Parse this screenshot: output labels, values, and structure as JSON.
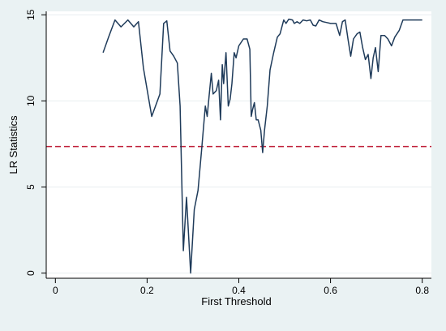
{
  "chart_data": {
    "type": "line",
    "xlabel": "First Threshold",
    "ylabel": "LR Statistics",
    "xlim": [
      -0.02,
      0.82
    ],
    "ylim": [
      -0.3,
      15.2
    ],
    "x_ticks": [
      0,
      0.2,
      0.4,
      0.6,
      0.8
    ],
    "x_tick_labels": [
      "0",
      "0.2",
      "0.4",
      "0.6",
      "0.8"
    ],
    "y_ticks": [
      0,
      5,
      10,
      15
    ],
    "y_tick_labels": [
      "0",
      "5",
      "10",
      "15"
    ],
    "grid": "horizontal",
    "legend": "none",
    "reference_line": {
      "y": 7.35,
      "style": "dashed",
      "color": "#c0203a"
    },
    "series": [
      {
        "color": "#1f3b5a",
        "points": [
          [
            0.104,
            12.8
          ],
          [
            0.116,
            13.7
          ],
          [
            0.13,
            14.7
          ],
          [
            0.143,
            14.3
          ],
          [
            0.158,
            14.7
          ],
          [
            0.171,
            14.3
          ],
          [
            0.181,
            14.6
          ],
          [
            0.192,
            11.9
          ],
          [
            0.21,
            9.1
          ],
          [
            0.228,
            10.4
          ],
          [
            0.236,
            14.5
          ],
          [
            0.243,
            14.65
          ],
          [
            0.25,
            12.9
          ],
          [
            0.258,
            12.6
          ],
          [
            0.266,
            12.2
          ],
          [
            0.272,
            9.7
          ],
          [
            0.279,
            1.3
          ],
          [
            0.286,
            4.4
          ],
          [
            0.295,
            0.0
          ],
          [
            0.303,
            3.7
          ],
          [
            0.311,
            4.8
          ],
          [
            0.319,
            7.2
          ],
          [
            0.327,
            9.7
          ],
          [
            0.331,
            9.1
          ],
          [
            0.335,
            10.2
          ],
          [
            0.34,
            11.6
          ],
          [
            0.344,
            10.4
          ],
          [
            0.351,
            10.6
          ],
          [
            0.356,
            11.2
          ],
          [
            0.36,
            8.9
          ],
          [
            0.364,
            12.1
          ],
          [
            0.367,
            11.0
          ],
          [
            0.372,
            12.8
          ],
          [
            0.377,
            9.7
          ],
          [
            0.381,
            10.1
          ],
          [
            0.385,
            11.0
          ],
          [
            0.39,
            12.8
          ],
          [
            0.394,
            12.5
          ],
          [
            0.4,
            13.2
          ],
          [
            0.41,
            13.6
          ],
          [
            0.418,
            13.6
          ],
          [
            0.424,
            13.0
          ],
          [
            0.427,
            9.1
          ],
          [
            0.43,
            9.5
          ],
          [
            0.434,
            9.9
          ],
          [
            0.438,
            8.9
          ],
          [
            0.442,
            8.9
          ],
          [
            0.448,
            8.3
          ],
          [
            0.452,
            7.0
          ],
          [
            0.456,
            8.3
          ],
          [
            0.462,
            9.7
          ],
          [
            0.468,
            11.8
          ],
          [
            0.476,
            12.8
          ],
          [
            0.484,
            13.7
          ],
          [
            0.49,
            13.9
          ],
          [
            0.498,
            14.7
          ],
          [
            0.503,
            14.5
          ],
          [
            0.509,
            14.75
          ],
          [
            0.517,
            14.7
          ],
          [
            0.521,
            14.5
          ],
          [
            0.527,
            14.6
          ],
          [
            0.533,
            14.5
          ],
          [
            0.54,
            14.7
          ],
          [
            0.548,
            14.65
          ],
          [
            0.556,
            14.7
          ],
          [
            0.562,
            14.4
          ],
          [
            0.568,
            14.35
          ],
          [
            0.575,
            14.7
          ],
          [
            0.583,
            14.6
          ],
          [
            0.592,
            14.55
          ],
          [
            0.6,
            14.5
          ],
          [
            0.612,
            14.5
          ],
          [
            0.62,
            13.8
          ],
          [
            0.626,
            14.6
          ],
          [
            0.632,
            14.7
          ],
          [
            0.638,
            13.6
          ],
          [
            0.644,
            12.6
          ],
          [
            0.65,
            13.6
          ],
          [
            0.658,
            13.9
          ],
          [
            0.664,
            14.0
          ],
          [
            0.67,
            13.1
          ],
          [
            0.676,
            12.4
          ],
          [
            0.682,
            12.7
          ],
          [
            0.688,
            11.3
          ],
          [
            0.693,
            12.5
          ],
          [
            0.698,
            13.1
          ],
          [
            0.704,
            11.7
          ],
          [
            0.71,
            13.8
          ],
          [
            0.718,
            13.8
          ],
          [
            0.725,
            13.6
          ],
          [
            0.733,
            13.2
          ],
          [
            0.74,
            13.7
          ],
          [
            0.75,
            14.1
          ],
          [
            0.758,
            14.7
          ],
          [
            0.77,
            14.7
          ],
          [
            0.8,
            14.7
          ]
        ]
      }
    ]
  },
  "colors": {
    "background": "#eaf2f3",
    "plot_area": "#ffffff",
    "grid": "#e8eef0",
    "axis": "#000000",
    "line": "#1f3b5a",
    "reference_line": "#c0203a"
  }
}
